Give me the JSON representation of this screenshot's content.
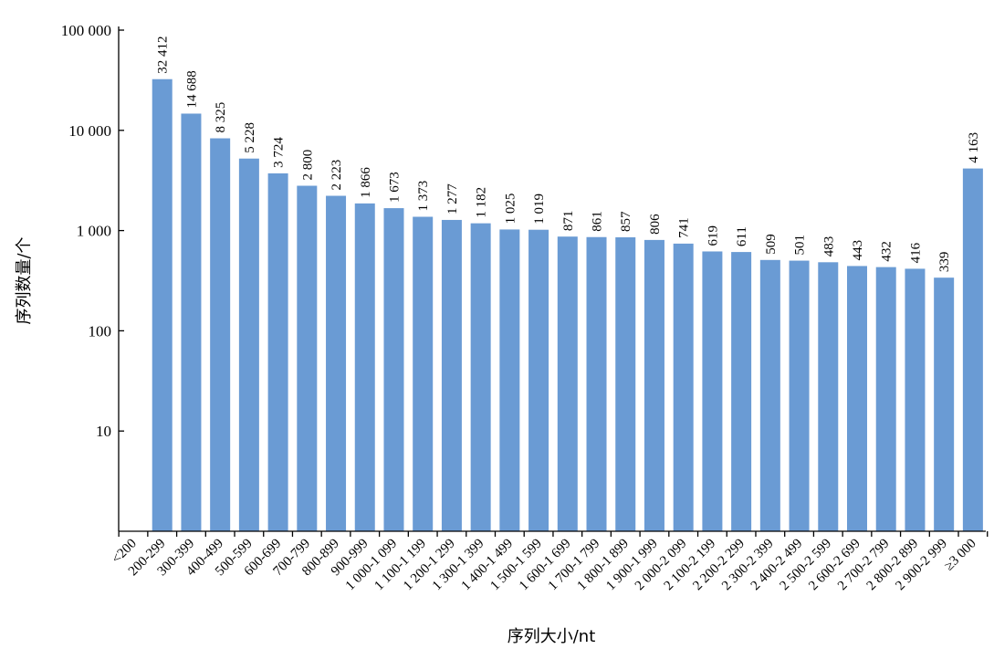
{
  "chart_data": {
    "type": "bar",
    "title": "",
    "xlabel": "序列大小/nt",
    "ylabel": "序列数量/个",
    "yscale": "log",
    "ylim": [
      1,
      100000
    ],
    "grid": false,
    "legend": "none",
    "bar_color": "#6a9bd4",
    "y_ticks": [
      {
        "value": 10,
        "label": "10"
      },
      {
        "value": 100,
        "label": "100"
      },
      {
        "value": 1000,
        "label": "1 000"
      },
      {
        "value": 10000,
        "label": "10 000"
      },
      {
        "value": 100000,
        "label": "100 000"
      }
    ],
    "categories": [
      "<200",
      "200-299",
      "300-399",
      "400-499",
      "500-599",
      "600-699",
      "700-799",
      "800-899",
      "900-999",
      "1 000-1 099",
      "1 100-1 199",
      "1 200-1 299",
      "1 300-1 399",
      "1 400-1 499",
      "1 500-1 599",
      "1 600-1 699",
      "1 700-1 799",
      "1 800-1 899",
      "1 900-1 999",
      "2 000-2 099",
      "2 100-2 199",
      "2 200-2 299",
      "2 300-2 399",
      "2 400-2 499",
      "2 500-2 599",
      "2 600-2 699",
      "2 700-2 799",
      "2 800-2 899",
      "2 900-2 999",
      "≥3 000"
    ],
    "values": [
      null,
      32412,
      14688,
      8325,
      5228,
      3724,
      2800,
      2223,
      1866,
      1673,
      1373,
      1277,
      1182,
      1025,
      1019,
      871,
      861,
      857,
      806,
      741,
      619,
      611,
      509,
      501,
      483,
      443,
      432,
      416,
      339,
      4163
    ],
    "data_labels": [
      "",
      "32 412",
      "14 688",
      "8 325",
      "5 228",
      "3 724",
      "2 800",
      "2 223",
      "1 866",
      "1 673",
      "1 373",
      "1 277",
      "1 182",
      "1 025",
      "1 019",
      "871",
      "861",
      "857",
      "806",
      "741",
      "619",
      "611",
      "509",
      "501",
      "483",
      "443",
      "432",
      "416",
      "339",
      "4 163"
    ]
  }
}
